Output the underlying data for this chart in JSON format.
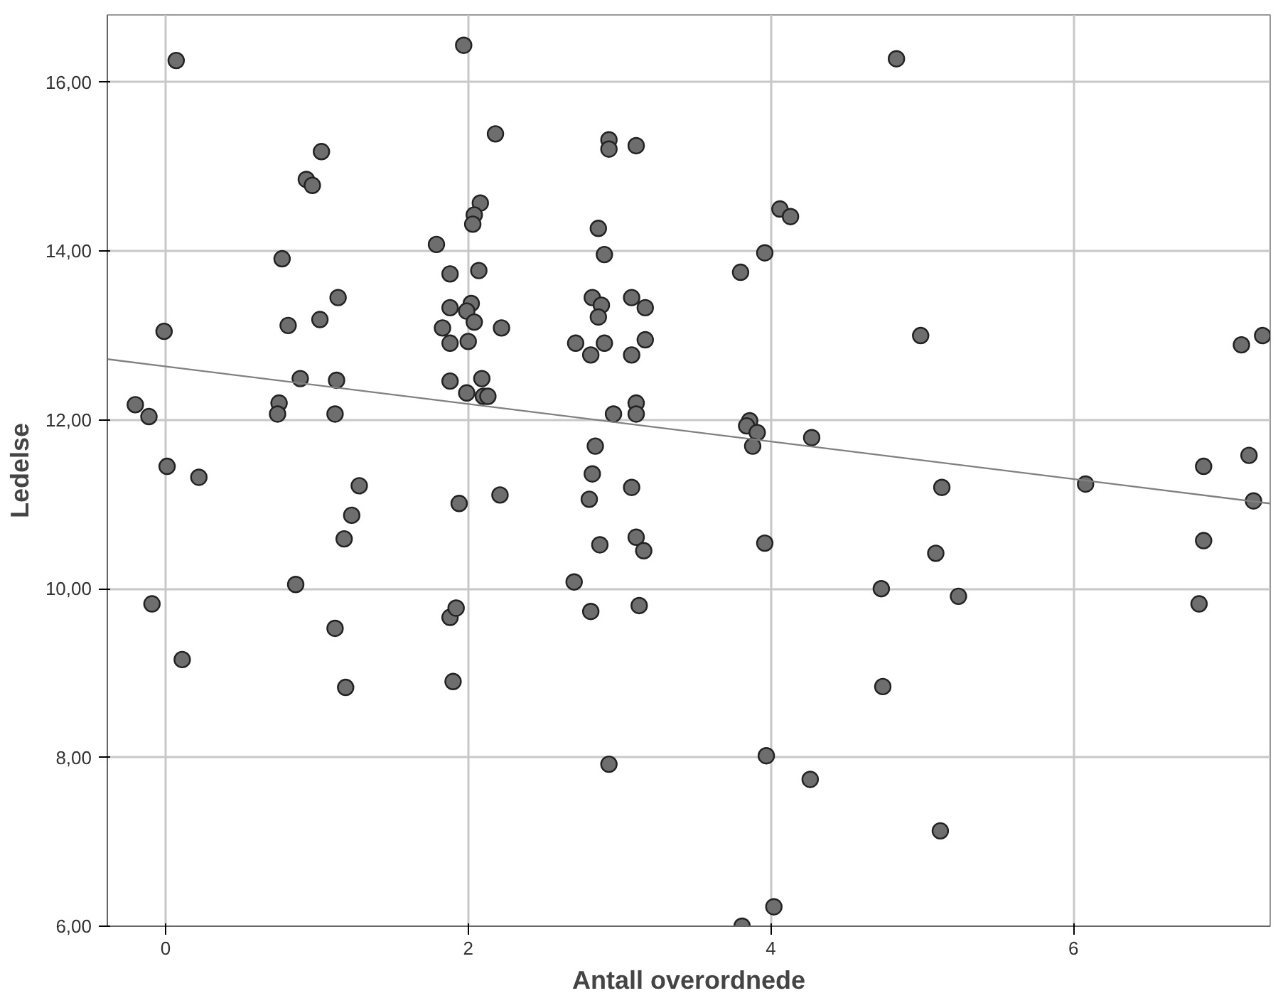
{
  "chart_data": {
    "type": "scatter",
    "xlabel": "Antall overordnede",
    "ylabel": "Ledelse",
    "xlim": [
      -0.385,
      7.3
    ],
    "ylim": [
      6,
      16.8
    ],
    "xticks": [
      0,
      2,
      4,
      6
    ],
    "yticks": [
      {
        "value": 6,
        "label": "6,00"
      },
      {
        "value": 8,
        "label": "8,00"
      },
      {
        "value": 10,
        "label": "10,00"
      },
      {
        "value": 12,
        "label": "12,00"
      },
      {
        "value": 14,
        "label": "14,00"
      },
      {
        "value": 16,
        "label": "16,00"
      }
    ],
    "grid": true,
    "marker": "circle",
    "series": [
      {
        "color": "#6e6e6e",
        "x": [
          -0.2,
          -0.11,
          0.07,
          -0.01,
          0.01,
          0.22,
          -0.09,
          0.11,
          0.77,
          0.81,
          0.89,
          0.75,
          0.74,
          0.93,
          0.97,
          1.03,
          1.02,
          1.14,
          1.13,
          1.12,
          1.28,
          1.23,
          1.18,
          0.86,
          1.12,
          1.19,
          1.97,
          2.18,
          2.08,
          2.04,
          2.03,
          1.79,
          1.88,
          2.07,
          1.88,
          2.02,
          1.99,
          2.04,
          1.83,
          2.22,
          1.88,
          2.0,
          1.88,
          2.09,
          1.99,
          2.1,
          2.13,
          1.94,
          2.21,
          1.88,
          1.92,
          1.9,
          2.93,
          2.93,
          3.11,
          2.86,
          2.9,
          2.82,
          2.88,
          2.86,
          3.08,
          3.17,
          2.71,
          2.81,
          2.9,
          3.08,
          3.17,
          2.96,
          3.11,
          3.11,
          2.84,
          2.82,
          2.8,
          3.08,
          2.87,
          3.11,
          3.16,
          2.7,
          2.81,
          3.13,
          2.93,
          3.8,
          3.96,
          4.06,
          4.13,
          3.86,
          3.84,
          3.91,
          3.88,
          4.27,
          3.96,
          4.73,
          4.74,
          5.13,
          5.09,
          5.24,
          6.08,
          6.86,
          7.16,
          7.19,
          6.86,
          6.83,
          4.26,
          5.12,
          3.97,
          4.02,
          3.81,
          4.83,
          4.99,
          7.11,
          7.25
        ],
        "values": [
          12.18,
          12.04,
          16.26,
          13.05,
          11.45,
          11.32,
          9.82,
          9.16,
          13.91,
          13.12,
          12.49,
          12.2,
          12.07,
          14.85,
          14.78,
          15.18,
          13.19,
          13.45,
          12.47,
          12.07,
          11.22,
          10.87,
          10.59,
          10.05,
          9.53,
          8.83,
          16.44,
          15.39,
          14.57,
          14.43,
          14.32,
          14.08,
          13.73,
          13.77,
          13.33,
          13.38,
          13.29,
          13.16,
          13.09,
          13.09,
          12.91,
          12.93,
          12.46,
          12.49,
          12.32,
          12.28,
          12.28,
          11.01,
          11.11,
          9.66,
          9.77,
          8.9,
          15.32,
          15.21,
          15.25,
          14.27,
          13.96,
          13.45,
          13.36,
          13.22,
          13.45,
          13.33,
          12.91,
          12.77,
          12.91,
          12.77,
          12.95,
          12.07,
          12.2,
          12.07,
          11.69,
          11.36,
          11.06,
          11.2,
          10.52,
          10.61,
          10.45,
          10.08,
          9.73,
          9.8,
          7.92,
          13.75,
          13.98,
          14.5,
          14.41,
          11.99,
          11.93,
          11.85,
          11.69,
          11.79,
          10.54,
          10.0,
          8.84,
          11.2,
          10.42,
          9.91,
          11.24,
          11.45,
          11.58,
          11.04,
          10.57,
          9.82,
          7.74,
          7.13,
          8.02,
          6.23,
          6.0,
          16.28,
          13.0,
          12.89,
          13.0
        ]
      },
      {
        "type": "line",
        "marker": "none",
        "color": "#808080",
        "x": [
          -0.385,
          7.3
        ],
        "values": [
          12.72,
          11.01
        ]
      }
    ]
  }
}
